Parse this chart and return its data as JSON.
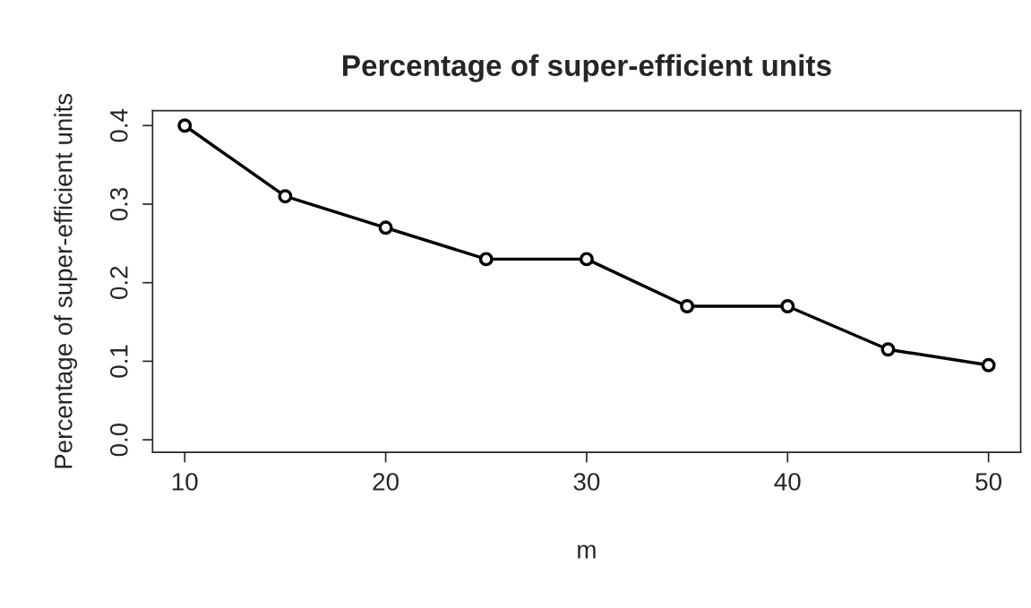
{
  "chart_data": {
    "type": "line",
    "title": "Percentage of super-efficient units",
    "xlabel": "m",
    "ylabel": "Percentage of super-efficient units",
    "x": [
      10,
      15,
      20,
      25,
      30,
      35,
      40,
      45,
      50
    ],
    "series": [
      {
        "color": "#000000",
        "values": [
          0.4,
          0.31,
          0.27,
          0.23,
          0.23,
          0.17,
          0.17,
          0.115,
          0.095
        ]
      }
    ],
    "xlim": [
      8.4,
      51.6
    ],
    "ylim": [
      -0.016,
      0.419
    ],
    "xticks": [
      10,
      20,
      30,
      40,
      50
    ],
    "yticks": [
      {
        "value": 0,
        "label": "0.0"
      },
      0.1,
      0.2,
      0.3,
      0.4
    ],
    "marker": "circle",
    "line_style": "solid",
    "grid": false
  }
}
